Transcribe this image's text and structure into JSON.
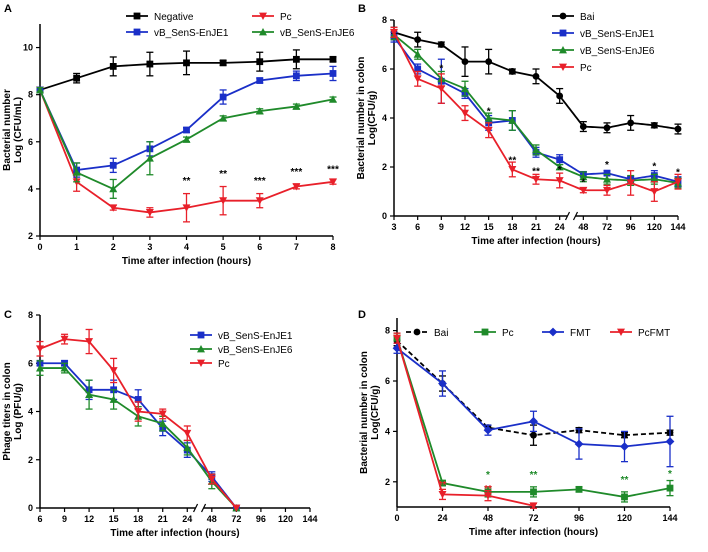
{
  "chart_data": [
    {
      "panel": "A",
      "type": "line",
      "title": "",
      "xlabel": "Time after infection (hours)",
      "ylabel": "Bacterial number Log (CFU/mL)",
      "x_ticks": [
        "0",
        "1",
        "2",
        "3",
        "4",
        "5",
        "6",
        "7",
        "8"
      ],
      "y_ticks": [
        "2",
        "4",
        "6",
        "8",
        "10"
      ],
      "xlim": [
        0,
        8
      ],
      "ylim": [
        2,
        11
      ],
      "legend_position": "top",
      "series": [
        {
          "name": "Negative",
          "color": "#000000",
          "marker": "square",
          "x": [
            0,
            1,
            2,
            3,
            4,
            5,
            6,
            7,
            8
          ],
          "values": [
            8.2,
            8.7,
            9.2,
            9.3,
            9.35,
            9.35,
            9.4,
            9.5,
            9.5
          ],
          "err": [
            0.1,
            0.2,
            0.4,
            0.5,
            0.5,
            0.1,
            0.4,
            0.4,
            0.1
          ]
        },
        {
          "name": "Pc",
          "color": "#e8202a",
          "marker": "triangle-down",
          "x": [
            0,
            1,
            2,
            3,
            4,
            5,
            6,
            7,
            8
          ],
          "values": [
            8.2,
            4.3,
            3.2,
            3.0,
            3.2,
            3.5,
            3.5,
            4.1,
            4.3
          ],
          "err": [
            0.1,
            0.4,
            0.1,
            0.2,
            0.6,
            0.6,
            0.3,
            0.1,
            0.1
          ]
        },
        {
          "name": "vB_SenS-EnJE1",
          "color": "#1a2fc8",
          "marker": "square",
          "x": [
            0,
            1,
            2,
            3,
            4,
            5,
            6,
            7,
            8
          ],
          "values": [
            8.2,
            4.8,
            5.0,
            5.7,
            6.5,
            7.9,
            8.6,
            8.8,
            8.9
          ],
          "err": [
            0.1,
            0.3,
            0.3,
            0.3,
            0.1,
            0.3,
            0.1,
            0.2,
            0.3
          ]
        },
        {
          "name": "vB_SenS-EnJE6",
          "color": "#1f8a2a",
          "marker": "triangle",
          "x": [
            0,
            1,
            2,
            3,
            4,
            5,
            6,
            7,
            8
          ],
          "values": [
            8.2,
            4.7,
            4.0,
            5.3,
            6.1,
            7.0,
            7.3,
            7.5,
            7.8
          ],
          "err": [
            0.1,
            0.4,
            0.4,
            0.7,
            0.1,
            0.1,
            0.1,
            0.1,
            0.1
          ]
        }
      ],
      "annotations": [
        {
          "x": 4,
          "y": 4.2,
          "text": "**"
        },
        {
          "x": 5,
          "y": 4.5,
          "text": "**"
        },
        {
          "x": 6,
          "y": 4.2,
          "text": "***"
        },
        {
          "x": 7,
          "y": 4.6,
          "text": "***"
        },
        {
          "x": 8,
          "y": 4.7,
          "text": "***"
        }
      ]
    },
    {
      "panel": "B",
      "type": "line",
      "title": "",
      "xlabel": "Time after infection (hours)",
      "ylabel": "Bacterial number in colon Log(CFU/g)",
      "x_ticks": [
        "3",
        "6",
        "9",
        "12",
        "15",
        "18",
        "21",
        "24",
        "48",
        "72",
        "96",
        "120",
        "144"
      ],
      "y_ticks": [
        "0",
        "2",
        "4",
        "6",
        "8"
      ],
      "ylim": [
        0,
        8
      ],
      "axis_break_after": "24",
      "legend_position": "top-right",
      "series": [
        {
          "name": "Bai",
          "color": "#000000",
          "marker": "circle",
          "x": [
            "3",
            "6",
            "9",
            "12",
            "15",
            "18",
            "21",
            "24",
            "48",
            "72",
            "96",
            "120",
            "144"
          ],
          "values": [
            7.5,
            7.2,
            7.0,
            6.3,
            6.3,
            5.9,
            5.7,
            4.9,
            3.65,
            3.6,
            3.8,
            3.7,
            3.55
          ],
          "err": [
            0.2,
            0.3,
            0.1,
            0.6,
            0.5,
            0.1,
            0.3,
            0.3,
            0.2,
            0.2,
            0.3,
            0.1,
            0.2
          ]
        },
        {
          "name": "vB_SenS-EnJE1",
          "color": "#1a2fc8",
          "marker": "square",
          "x": [
            "3",
            "6",
            "9",
            "12",
            "15",
            "18",
            "21",
            "24",
            "48",
            "72",
            "96",
            "120",
            "144"
          ],
          "values": [
            7.3,
            6.0,
            5.5,
            5.0,
            3.8,
            3.9,
            2.6,
            2.3,
            1.7,
            1.75,
            1.5,
            1.65,
            1.4
          ],
          "err": [
            0.2,
            0.2,
            0.9,
            0.2,
            0.3,
            0.4,
            0.2,
            0.2,
            0.1,
            0.1,
            0.1,
            0.2,
            0.2
          ]
        },
        {
          "name": "vB_SenS-EnJE6",
          "color": "#1f8a2a",
          "marker": "triangle",
          "x": [
            "3",
            "6",
            "9",
            "12",
            "15",
            "18",
            "21",
            "24",
            "48",
            "72",
            "96",
            "120",
            "144"
          ],
          "values": [
            7.4,
            6.6,
            5.6,
            5.2,
            4.0,
            3.9,
            2.7,
            2.0,
            1.6,
            1.5,
            1.45,
            1.5,
            1.35
          ],
          "err": [
            0.2,
            0.2,
            0.3,
            0.3,
            0.2,
            0.4,
            0.2,
            0.1,
            0.2,
            0.2,
            0.2,
            0.2,
            0.2
          ]
        },
        {
          "name": "Pc",
          "color": "#e8202a",
          "marker": "triangle-down",
          "x": [
            "3",
            "6",
            "9",
            "12",
            "15",
            "18",
            "21",
            "24",
            "48",
            "72",
            "96",
            "120",
            "144"
          ],
          "values": [
            7.5,
            5.6,
            5.2,
            4.2,
            3.5,
            1.9,
            1.5,
            1.45,
            1.05,
            1.05,
            1.35,
            1.0,
            1.4
          ],
          "err": [
            0.2,
            0.3,
            0.6,
            0.3,
            0.3,
            0.3,
            0.2,
            0.3,
            0.1,
            0.2,
            0.5,
            0.4,
            0.3
          ]
        }
      ],
      "annotations": [
        {
          "x": "9",
          "y": 5.9,
          "text": "*"
        },
        {
          "x": "15",
          "y": 4.15,
          "text": "*"
        },
        {
          "x": "18",
          "y": 2.15,
          "text": "**"
        },
        {
          "x": "21",
          "y": 1.7,
          "text": "**"
        },
        {
          "x": "24",
          "y": 1.75,
          "text": "*"
        },
        {
          "x": "48",
          "y": 1.25,
          "text": "*"
        },
        {
          "x": "72",
          "y": 1.95,
          "text": "*"
        },
        {
          "x": "120",
          "y": 1.9,
          "text": "*"
        },
        {
          "x": "144",
          "y": 1.65,
          "text": "*"
        }
      ]
    },
    {
      "panel": "C",
      "type": "line",
      "title": "",
      "xlabel": "Time after infection (hours)",
      "ylabel": "Phage titers in colon Log (PFU/g)",
      "x_ticks": [
        "6",
        "9",
        "12",
        "15",
        "18",
        "21",
        "24",
        "48",
        "72",
        "96",
        "120",
        "144"
      ],
      "y_ticks": [
        "0",
        "2",
        "4",
        "6",
        "8"
      ],
      "ylim": [
        0,
        8
      ],
      "axis_break_after": "24",
      "legend_position": "top-right",
      "series": [
        {
          "name": "vB_SenS-EnJE1",
          "color": "#1a2fc8",
          "marker": "square",
          "x": [
            "6",
            "9",
            "12",
            "15",
            "18",
            "21",
            "24",
            "48",
            "72"
          ],
          "values": [
            6.0,
            6.0,
            4.9,
            4.9,
            4.5,
            3.3,
            2.4,
            1.3,
            0.0
          ],
          "err": [
            0.1,
            0.1,
            0.4,
            0.4,
            0.4,
            0.3,
            0.3,
            0.2,
            0.0
          ]
        },
        {
          "name": "vB_SenS-EnJE6",
          "color": "#1f8a2a",
          "marker": "triangle",
          "x": [
            "6",
            "9",
            "12",
            "15",
            "18",
            "21",
            "24",
            "48",
            "72"
          ],
          "values": [
            5.8,
            5.8,
            4.7,
            4.5,
            3.8,
            3.5,
            2.5,
            1.1,
            0.0
          ],
          "err": [
            0.3,
            0.2,
            0.6,
            0.4,
            0.4,
            0.3,
            0.3,
            0.3,
            0.0
          ]
        },
        {
          "name": "Pc",
          "color": "#e8202a",
          "marker": "triangle-down",
          "x": [
            "6",
            "9",
            "12",
            "15",
            "18",
            "21",
            "24",
            "48",
            "72"
          ],
          "values": [
            6.6,
            7.0,
            6.9,
            5.7,
            4.0,
            3.9,
            3.1,
            1.2,
            0.0
          ],
          "err": [
            0.3,
            0.2,
            0.5,
            0.5,
            0.4,
            0.2,
            0.3,
            0.2,
            0.0
          ]
        }
      ]
    },
    {
      "panel": "D",
      "type": "line",
      "title": "",
      "xlabel": "Time after infection (hours)",
      "ylabel": "Bacterial number in colon Log(CFU/g)",
      "x_ticks": [
        "0",
        "24",
        "48",
        "72",
        "96",
        "120",
        "144"
      ],
      "y_ticks": [
        "2",
        "4",
        "6",
        "8"
      ],
      "xlim": [
        0,
        144
      ],
      "ylim": [
        1,
        8.5
      ],
      "legend_position": "top",
      "series": [
        {
          "name": "Bai",
          "color": "#000000",
          "marker": "circle",
          "dashed": true,
          "x": [
            0,
            24,
            48,
            72,
            96,
            120,
            144
          ],
          "values": [
            7.6,
            5.9,
            4.15,
            3.85,
            4.05,
            3.85,
            3.95
          ],
          "err": [
            0.2,
            0.3,
            0.1,
            0.4,
            0.1,
            0.1,
            0.1
          ]
        },
        {
          "name": "Pc",
          "color": "#1f8a2a",
          "marker": "square",
          "x": [
            0,
            24,
            48,
            72,
            96,
            120,
            144
          ],
          "values": [
            7.7,
            1.95,
            1.6,
            1.6,
            1.7,
            1.4,
            1.75
          ],
          "err": [
            0.2,
            0.1,
            0.2,
            0.2,
            0.1,
            0.2,
            0.3
          ]
        },
        {
          "name": "FMT",
          "color": "#1a2fc8",
          "marker": "diamond",
          "x": [
            0,
            24,
            48,
            72,
            96,
            120,
            144
          ],
          "values": [
            7.3,
            5.9,
            4.05,
            4.4,
            3.5,
            3.4,
            3.6
          ],
          "err": [
            0.2,
            0.5,
            0.2,
            0.4,
            0.6,
            0.6,
            1.0
          ]
        },
        {
          "name": "PcFMT",
          "color": "#e8202a",
          "marker": "triangle-down",
          "x": [
            0,
            24,
            48,
            72
          ],
          "values": [
            7.7,
            1.5,
            1.45,
            1.05
          ],
          "err": [
            0.2,
            0.2,
            0.2,
            0.1
          ]
        }
      ],
      "annotations": [
        {
          "x": 24,
          "y": 1.75,
          "text": "**",
          "color": "#e8202a"
        },
        {
          "x": 48,
          "y": 2.15,
          "text": "*",
          "color": "#1f8a2a"
        },
        {
          "x": 48,
          "y": 1.6,
          "text": "**",
          "color": "#e8202a"
        },
        {
          "x": 72,
          "y": 2.15,
          "text": "**",
          "color": "#1f8a2a"
        },
        {
          "x": 120,
          "y": 1.95,
          "text": "**",
          "color": "#1f8a2a"
        },
        {
          "x": 144,
          "y": 2.2,
          "text": "*",
          "color": "#1f8a2a"
        }
      ]
    }
  ]
}
